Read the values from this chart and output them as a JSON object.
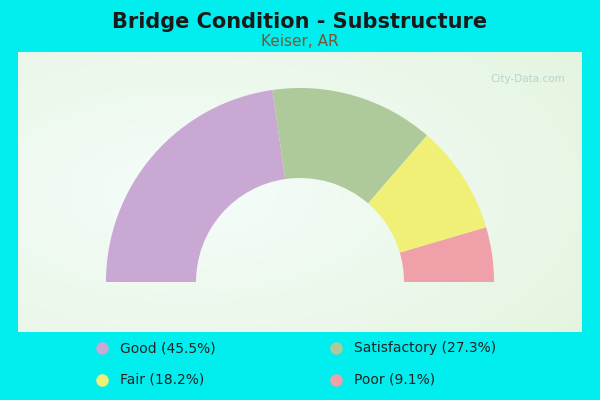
{
  "title": "Bridge Condition - Substructure",
  "subtitle": "Keiser, AR",
  "title_fontsize": 15,
  "subtitle_fontsize": 11,
  "title_color": "#1a1a1a",
  "subtitle_color": "#7a5533",
  "background_color": "#00eeee",
  "chart_bg_left": "#e8f5e8",
  "chart_bg_right": "#f5f5f0",
  "segments": [
    {
      "label": "Good (45.5%)",
      "value": 45.5,
      "color": "#c9a8d4"
    },
    {
      "label": "Satisfactory (27.3%)",
      "value": 27.3,
      "color": "#aec99a"
    },
    {
      "label": "Fair (18.2%)",
      "value": 18.2,
      "color": "#f0f077"
    },
    {
      "label": "Poor (9.1%)",
      "value": 9.1,
      "color": "#f0a0a8"
    }
  ],
  "legend_fontsize": 10,
  "watermark": "• City-Data.com",
  "inner_r": 0.52,
  "outer_r": 0.97
}
